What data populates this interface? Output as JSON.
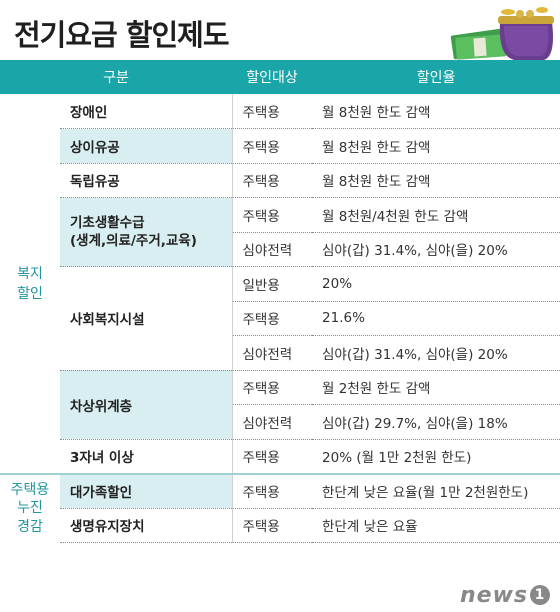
{
  "title": "전기요금 할인제도",
  "header": {
    "col1": "구분",
    "col2": "할인대상",
    "col3": "할인율"
  },
  "categories": {
    "welfare": "복지\n할인",
    "housing": "주택용\n누진\n경감"
  },
  "rows": [
    {
      "sub": "장애인",
      "target": "주택용",
      "rate": "월 8천원 한도 감액"
    },
    {
      "sub": "상이유공",
      "target": "주택용",
      "rate": "월 8천원 한도 감액"
    },
    {
      "sub": "독립유공",
      "target": "주택용",
      "rate": "월 8천원 한도 감액"
    },
    {
      "sub": "기초생활수급\n(생계,의료/주거,교육)",
      "target": "주택용",
      "rate": "월 8천원/4천원 한도 감액"
    },
    {
      "target": "심야전력",
      "rate": "심야(갑) 31.4%, 심야(을) 20%"
    },
    {
      "sub": "사회복지시설",
      "target": "일반용",
      "rate": "20%"
    },
    {
      "target": "주택용",
      "rate": "21.6%"
    },
    {
      "target": "심야전력",
      "rate": "심야(갑) 31.4%, 심야(을) 20%"
    },
    {
      "sub": "차상위계층",
      "target": "주택용",
      "rate": "월 2천원 한도 감액"
    },
    {
      "target": "심야전력",
      "rate": "심야(갑) 29.7%, 심야(을) 18%"
    },
    {
      "sub": "3자녀 이상",
      "target": "주택용",
      "rate": "20% (월 1만 2천원 한도)"
    },
    {
      "sub": "대가족할인",
      "target": "주택용",
      "rate": "한단계 낮은 요율(월 1만 2천원한도)"
    },
    {
      "sub": "생명유지장치",
      "target": "주택용",
      "rate": "한단계 낮은 요율"
    }
  ],
  "source_logo": "news",
  "source_logo_mark": "1",
  "colors": {
    "header_bg": "#1aa6a9",
    "category_text": "#2296a0",
    "sub_bg": "#d9eef0"
  }
}
